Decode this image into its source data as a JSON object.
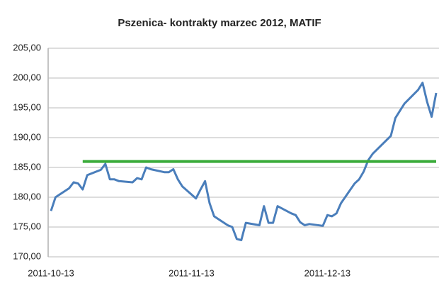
{
  "chart_data": {
    "type": "line",
    "title": "Pszenica- kontrakty marzec 2012, MATIF",
    "series": [
      {
        "color": "#4a7ebb",
        "x": [
          "2011-10-13",
          "2011-10-14",
          "2011-10-17",
          "2011-10-18",
          "2011-10-19",
          "2011-10-20",
          "2011-10-21",
          "2011-10-24",
          "2011-10-25",
          "2011-10-26",
          "2011-10-27",
          "2011-10-28",
          "2011-10-31",
          "2011-11-01",
          "2011-11-02",
          "2011-11-03",
          "2011-11-04",
          "2011-11-07",
          "2011-11-08",
          "2011-11-09",
          "2011-11-10",
          "2011-11-11",
          "2011-11-14",
          "2011-11-15",
          "2011-11-16",
          "2011-11-17",
          "2011-11-18",
          "2011-11-21",
          "2011-11-22",
          "2011-11-23",
          "2011-11-24",
          "2011-11-25",
          "2011-11-28",
          "2011-11-29",
          "2011-11-30",
          "2011-12-01",
          "2011-12-02",
          "2011-12-05",
          "2011-12-06",
          "2011-12-07",
          "2011-12-08",
          "2011-12-09",
          "2011-12-12",
          "2011-12-13",
          "2011-12-14",
          "2011-12-15",
          "2011-12-16",
          "2011-12-19",
          "2011-12-20",
          "2011-12-21",
          "2011-12-22",
          "2011-12-23",
          "2011-12-27",
          "2011-12-28",
          "2011-12-29",
          "2011-12-30",
          "2012-01-02",
          "2012-01-03",
          "2012-01-04",
          "2012-01-05",
          "2012-01-06"
        ],
        "values": [
          177.7,
          180.0,
          181.5,
          182.5,
          182.3,
          181.3,
          183.7,
          184.6,
          185.6,
          183.0,
          183.0,
          182.7,
          182.5,
          183.2,
          183.0,
          185.0,
          184.7,
          184.2,
          184.2,
          184.7,
          183.0,
          181.8,
          179.8,
          181.3,
          182.7,
          179.0,
          176.8,
          175.3,
          175.0,
          173.0,
          172.8,
          175.7,
          175.3,
          178.5,
          175.7,
          175.7,
          178.5,
          177.3,
          177.0,
          175.8,
          175.3,
          175.5,
          175.2,
          177.0,
          176.8,
          177.3,
          179.0,
          182.3,
          183.0,
          184.3,
          186.2,
          187.3,
          190.3,
          193.3,
          194.5,
          195.7,
          198.0,
          199.2,
          196.0,
          193.5,
          197.5
        ]
      },
      {
        "color": "#3aab3a",
        "x": [
          "2011-10-20",
          "2012-01-06"
        ],
        "values": [
          186,
          186
        ]
      }
    ],
    "xlim": [
      "2011-10-13",
      "2012-01-06"
    ],
    "xticks": [
      "2011-10-13",
      "2011-11-13",
      "2011-12-13"
    ],
    "ylim": [
      170,
      205
    ],
    "yticks": [
      {
        "value": 170,
        "label": "170,00"
      },
      {
        "value": 175,
        "label": "175,00"
      },
      {
        "value": 180,
        "label": "180,00"
      },
      {
        "value": 185,
        "label": "185,00"
      },
      {
        "value": 190,
        "label": "190,00"
      },
      {
        "value": 195,
        "label": "195,00"
      },
      {
        "value": 200,
        "label": "200,00"
      },
      {
        "value": 205,
        "label": "205,00"
      }
    ],
    "grid": true
  }
}
